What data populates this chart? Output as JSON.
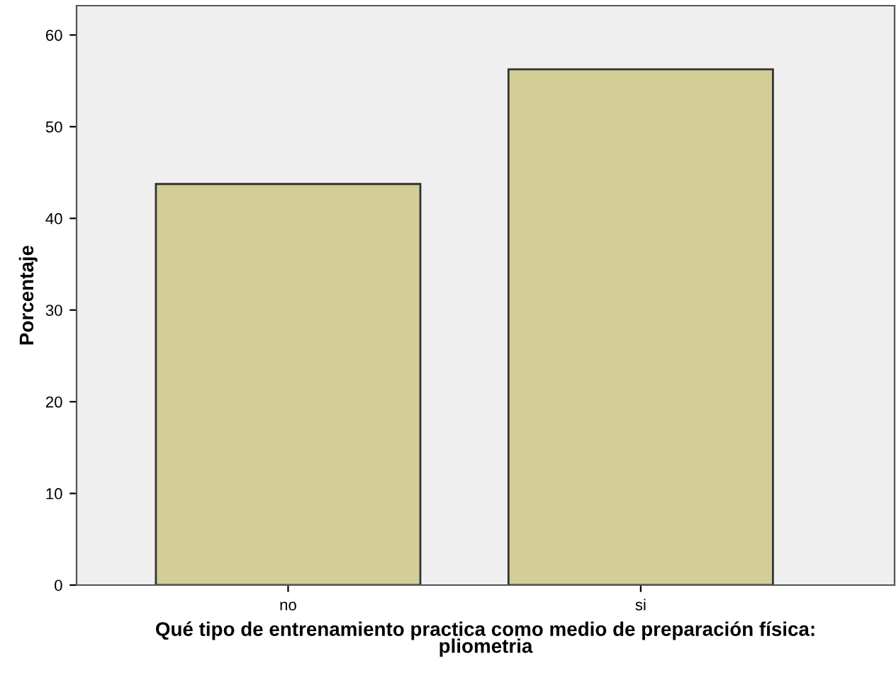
{
  "chart_data": {
    "type": "bar",
    "xlabel": "Qué tipo de entrenamiento practica como medio de preparación física:\npliometria",
    "ylabel": "Porcentaje",
    "categories": [
      "no",
      "si"
    ],
    "values": [
      43.75,
      56.25
    ],
    "color": "#d3ce97",
    "ylim": [
      0,
      63.2
    ],
    "yticks": [
      0,
      10,
      20,
      30,
      40,
      50,
      60
    ],
    "grid": false,
    "legend": false
  }
}
